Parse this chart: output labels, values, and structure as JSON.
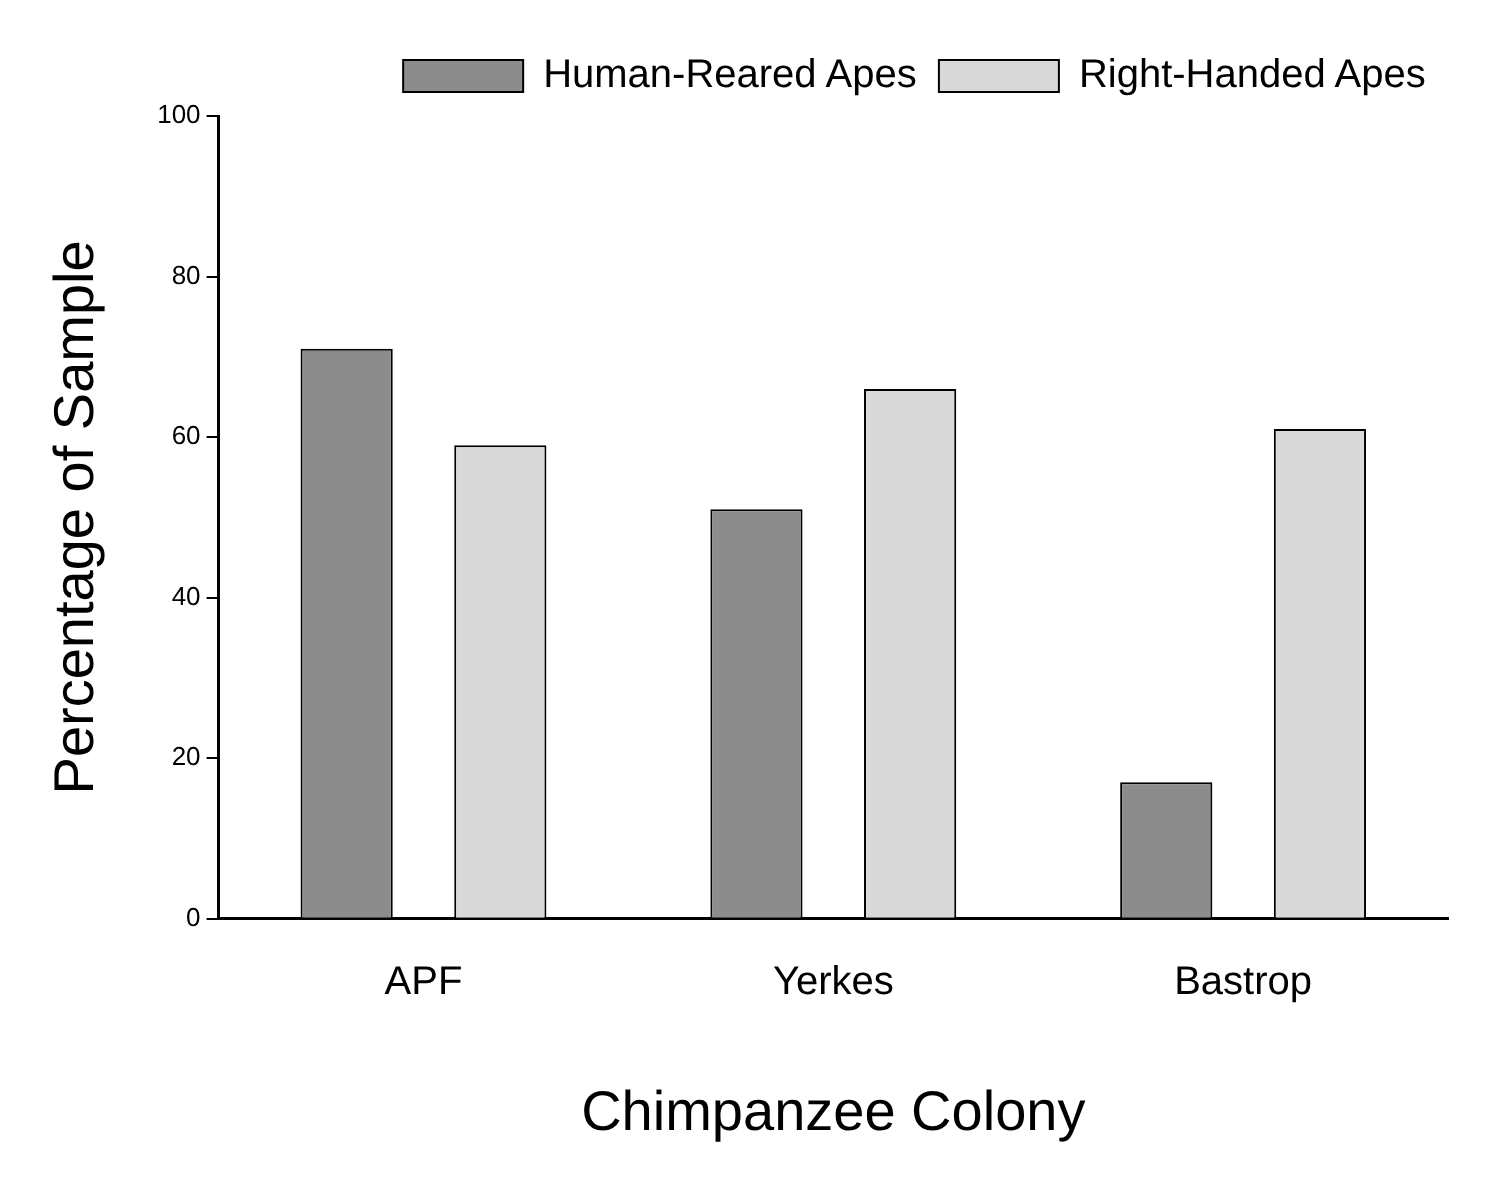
{
  "chart_data": {
    "type": "bar",
    "xlabel": "Chimpanzee Colony",
    "ylabel": "Percentage of Sample",
    "categories": [
      "APF",
      "Yerkes",
      "Bastrop"
    ],
    "series": [
      {
        "name": "Human-Reared Apes",
        "color": "#8c8c8c",
        "values": [
          71,
          51,
          17
        ]
      },
      {
        "name": "Right-Handed Apes",
        "color": "#d9d9d9",
        "values": [
          59,
          66,
          61
        ]
      }
    ],
    "ylim": [
      0,
      100
    ],
    "yticks": [
      0,
      20,
      40,
      60,
      80,
      100
    ],
    "grid": false,
    "legend": "top right"
  }
}
